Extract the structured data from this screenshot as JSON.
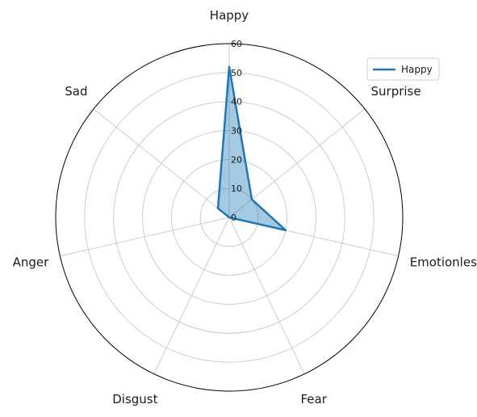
{
  "chart_data": {
    "type": "radar",
    "categories": [
      "Happy",
      "Surprise",
      "Emotionless",
      "Fear",
      "Disgust",
      "Anger",
      "Sad"
    ],
    "series": [
      {
        "name": "Happy",
        "values": [
          52,
          10,
          20,
          0,
          0,
          0,
          5
        ]
      }
    ],
    "rlim": [
      0,
      60
    ],
    "rticks": [
      0,
      10,
      20,
      30,
      40,
      50,
      60
    ],
    "grid": true,
    "legend": "top-right",
    "colors": {
      "line": "#1f77b4",
      "fill": "#1f77b4",
      "grid": "#cccccc",
      "frame": "#000000"
    }
  }
}
